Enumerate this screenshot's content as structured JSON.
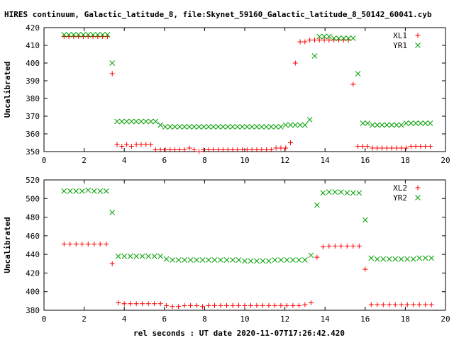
{
  "title": "HIRES continuum, Galactic_latitude_8, file:Skynet_59160_Galactic_latitude_8_50142_60041.cyb",
  "xlabel": "rel seconds : UT date 2020-11-07T17:26:42.420",
  "colors": {
    "red": "#ff0000",
    "green": "#00a000"
  },
  "chart_data": [
    {
      "type": "scatter",
      "ylabel": "Uncalibrated",
      "xlim": [
        0,
        20
      ],
      "ylim": [
        350,
        420
      ],
      "xticks": [
        0,
        2,
        4,
        6,
        8,
        10,
        12,
        14,
        16,
        18,
        20
      ],
      "yticks": [
        350,
        360,
        370,
        380,
        390,
        400,
        410,
        420
      ],
      "legend_position": "top-right",
      "series": [
        {
          "name": "XL1",
          "marker": "plus",
          "color": "#ff0000",
          "x": [
            1.0,
            1.24,
            1.48,
            1.72,
            1.96,
            2.2,
            2.44,
            2.68,
            2.92,
            3.16,
            3.4,
            3.64,
            3.88,
            4.12,
            4.36,
            4.6,
            4.84,
            5.08,
            5.32,
            5.56,
            5.8,
            6.04,
            6.28,
            6.52,
            6.76,
            7.0,
            7.24,
            7.48,
            7.72,
            7.96,
            8.2,
            8.44,
            8.68,
            8.92,
            9.16,
            9.4,
            9.64,
            9.88,
            10.12,
            10.36,
            10.6,
            10.84,
            11.08,
            11.32,
            11.56,
            11.8,
            12.04,
            12.28,
            12.52,
            12.76,
            13.0,
            13.24,
            13.48,
            13.72,
            13.96,
            14.2,
            14.44,
            14.68,
            14.92,
            15.16,
            15.4,
            15.64,
            15.88,
            16.12,
            16.36,
            16.6,
            16.84,
            17.08,
            17.32,
            17.56,
            17.8,
            18.04,
            18.28,
            18.52,
            18.76,
            19.0,
            19.24
          ],
          "y": [
            415,
            415,
            415,
            415,
            415,
            415,
            415,
            415,
            415,
            415,
            394,
            354,
            353,
            354,
            353,
            354,
            354,
            354,
            354,
            351,
            351,
            351,
            351,
            351,
            351,
            351,
            352,
            351,
            350,
            351,
            351,
            351,
            351,
            351,
            351,
            351,
            351,
            351,
            351,
            351,
            351,
            351,
            351,
            351,
            352,
            352,
            352,
            355,
            400,
            412,
            412,
            413,
            413,
            413,
            413,
            413,
            413,
            413,
            413,
            413,
            388,
            353,
            353,
            353,
            352,
            352,
            352,
            352,
            352,
            352,
            352,
            352,
            353,
            353,
            353,
            353,
            353
          ]
        },
        {
          "name": "YR1",
          "marker": "cross",
          "color": "#00a000",
          "x": [
            1.0,
            1.24,
            1.48,
            1.72,
            1.96,
            2.2,
            2.44,
            2.68,
            2.92,
            3.16,
            3.4,
            3.64,
            3.88,
            4.12,
            4.36,
            4.6,
            4.84,
            5.08,
            5.32,
            5.56,
            5.8,
            6.04,
            6.28,
            6.52,
            6.76,
            7.0,
            7.24,
            7.48,
            7.72,
            7.96,
            8.2,
            8.44,
            8.68,
            8.92,
            9.16,
            9.4,
            9.64,
            9.88,
            10.12,
            10.36,
            10.6,
            10.84,
            11.08,
            11.32,
            11.56,
            11.8,
            12.04,
            12.28,
            12.52,
            12.76,
            13.0,
            13.24,
            13.48,
            13.72,
            13.96,
            14.2,
            14.44,
            14.68,
            14.92,
            15.16,
            15.4,
            15.64,
            15.88,
            16.12,
            16.36,
            16.6,
            16.84,
            17.08,
            17.32,
            17.56,
            17.8,
            18.04,
            18.28,
            18.52,
            18.76,
            19.0,
            19.24
          ],
          "y": [
            416,
            416,
            416,
            416,
            416,
            416,
            416,
            416,
            416,
            416,
            400,
            367,
            367,
            367,
            367,
            367,
            367,
            367,
            367,
            367,
            365,
            364,
            364,
            364,
            364,
            364,
            364,
            364,
            364,
            364,
            364,
            364,
            364,
            364,
            364,
            364,
            364,
            364,
            364,
            364,
            364,
            364,
            364,
            364,
            364,
            364,
            365,
            365,
            365,
            365,
            365,
            368,
            404,
            415,
            415,
            415,
            414,
            414,
            414,
            414,
            414,
            394,
            366,
            366,
            365,
            365,
            365,
            365,
            365,
            365,
            365,
            366,
            366,
            366,
            366,
            366,
            366
          ]
        }
      ]
    },
    {
      "type": "scatter",
      "ylabel": "Uncalibrated",
      "xlim": [
        0,
        20
      ],
      "ylim": [
        380,
        520
      ],
      "xticks": [
        0,
        2,
        4,
        6,
        8,
        10,
        12,
        14,
        16,
        18,
        20
      ],
      "yticks": [
        380,
        400,
        420,
        440,
        460,
        480,
        500,
        520
      ],
      "legend_position": "top-right",
      "series": [
        {
          "name": "XL2",
          "marker": "plus",
          "color": "#ff0000",
          "x": [
            1.0,
            1.3,
            1.6,
            1.9,
            2.2,
            2.5,
            2.8,
            3.1,
            3.4,
            3.7,
            4.0,
            4.3,
            4.6,
            4.9,
            5.2,
            5.5,
            5.8,
            6.1,
            6.4,
            6.7,
            7.0,
            7.3,
            7.6,
            7.9,
            8.2,
            8.5,
            8.8,
            9.1,
            9.4,
            9.7,
            10.0,
            10.3,
            10.6,
            10.9,
            11.2,
            11.5,
            11.8,
            12.1,
            12.4,
            12.7,
            13.0,
            13.3,
            13.6,
            13.9,
            14.2,
            14.5,
            14.8,
            15.1,
            15.4,
            15.7,
            16.0,
            16.3,
            16.6,
            16.9,
            17.2,
            17.5,
            17.8,
            18.1,
            18.4,
            18.7,
            19.0,
            19.3
          ],
          "y": [
            451,
            451,
            451,
            451,
            451,
            451,
            451,
            451,
            430,
            388,
            387,
            387,
            387,
            387,
            387,
            387,
            387,
            385,
            384,
            384,
            385,
            385,
            385,
            384,
            385,
            385,
            385,
            385,
            385,
            385,
            385,
            385,
            385,
            385,
            385,
            385,
            385,
            385,
            385,
            385,
            386,
            388,
            437,
            448,
            449,
            449,
            449,
            449,
            449,
            449,
            424,
            386,
            386,
            386,
            386,
            386,
            386,
            386,
            386,
            386,
            386,
            386
          ]
        },
        {
          "name": "YR2",
          "marker": "cross",
          "color": "#00a000",
          "x": [
            1.0,
            1.3,
            1.6,
            1.9,
            2.2,
            2.5,
            2.8,
            3.1,
            3.4,
            3.7,
            4.0,
            4.3,
            4.6,
            4.9,
            5.2,
            5.5,
            5.8,
            6.1,
            6.4,
            6.7,
            7.0,
            7.3,
            7.6,
            7.9,
            8.2,
            8.5,
            8.8,
            9.1,
            9.4,
            9.7,
            10.0,
            10.3,
            10.6,
            10.9,
            11.2,
            11.5,
            11.8,
            12.1,
            12.4,
            12.7,
            13.0,
            13.3,
            13.6,
            13.9,
            14.2,
            14.5,
            14.8,
            15.1,
            15.4,
            15.7,
            16.0,
            16.3,
            16.6,
            16.9,
            17.2,
            17.5,
            17.8,
            18.1,
            18.4,
            18.7,
            19.0,
            19.3
          ],
          "y": [
            508,
            508,
            508,
            508,
            509,
            508,
            508,
            508,
            485,
            438,
            438,
            438,
            438,
            438,
            438,
            438,
            438,
            435,
            434,
            434,
            434,
            434,
            434,
            434,
            434,
            434,
            434,
            434,
            434,
            434,
            433,
            433,
            433,
            433,
            433,
            434,
            434,
            434,
            434,
            434,
            434,
            439,
            493,
            506,
            507,
            507,
            507,
            506,
            506,
            506,
            477,
            436,
            435,
            435,
            435,
            435,
            435,
            435,
            435,
            436,
            436,
            436
          ]
        }
      ]
    }
  ]
}
